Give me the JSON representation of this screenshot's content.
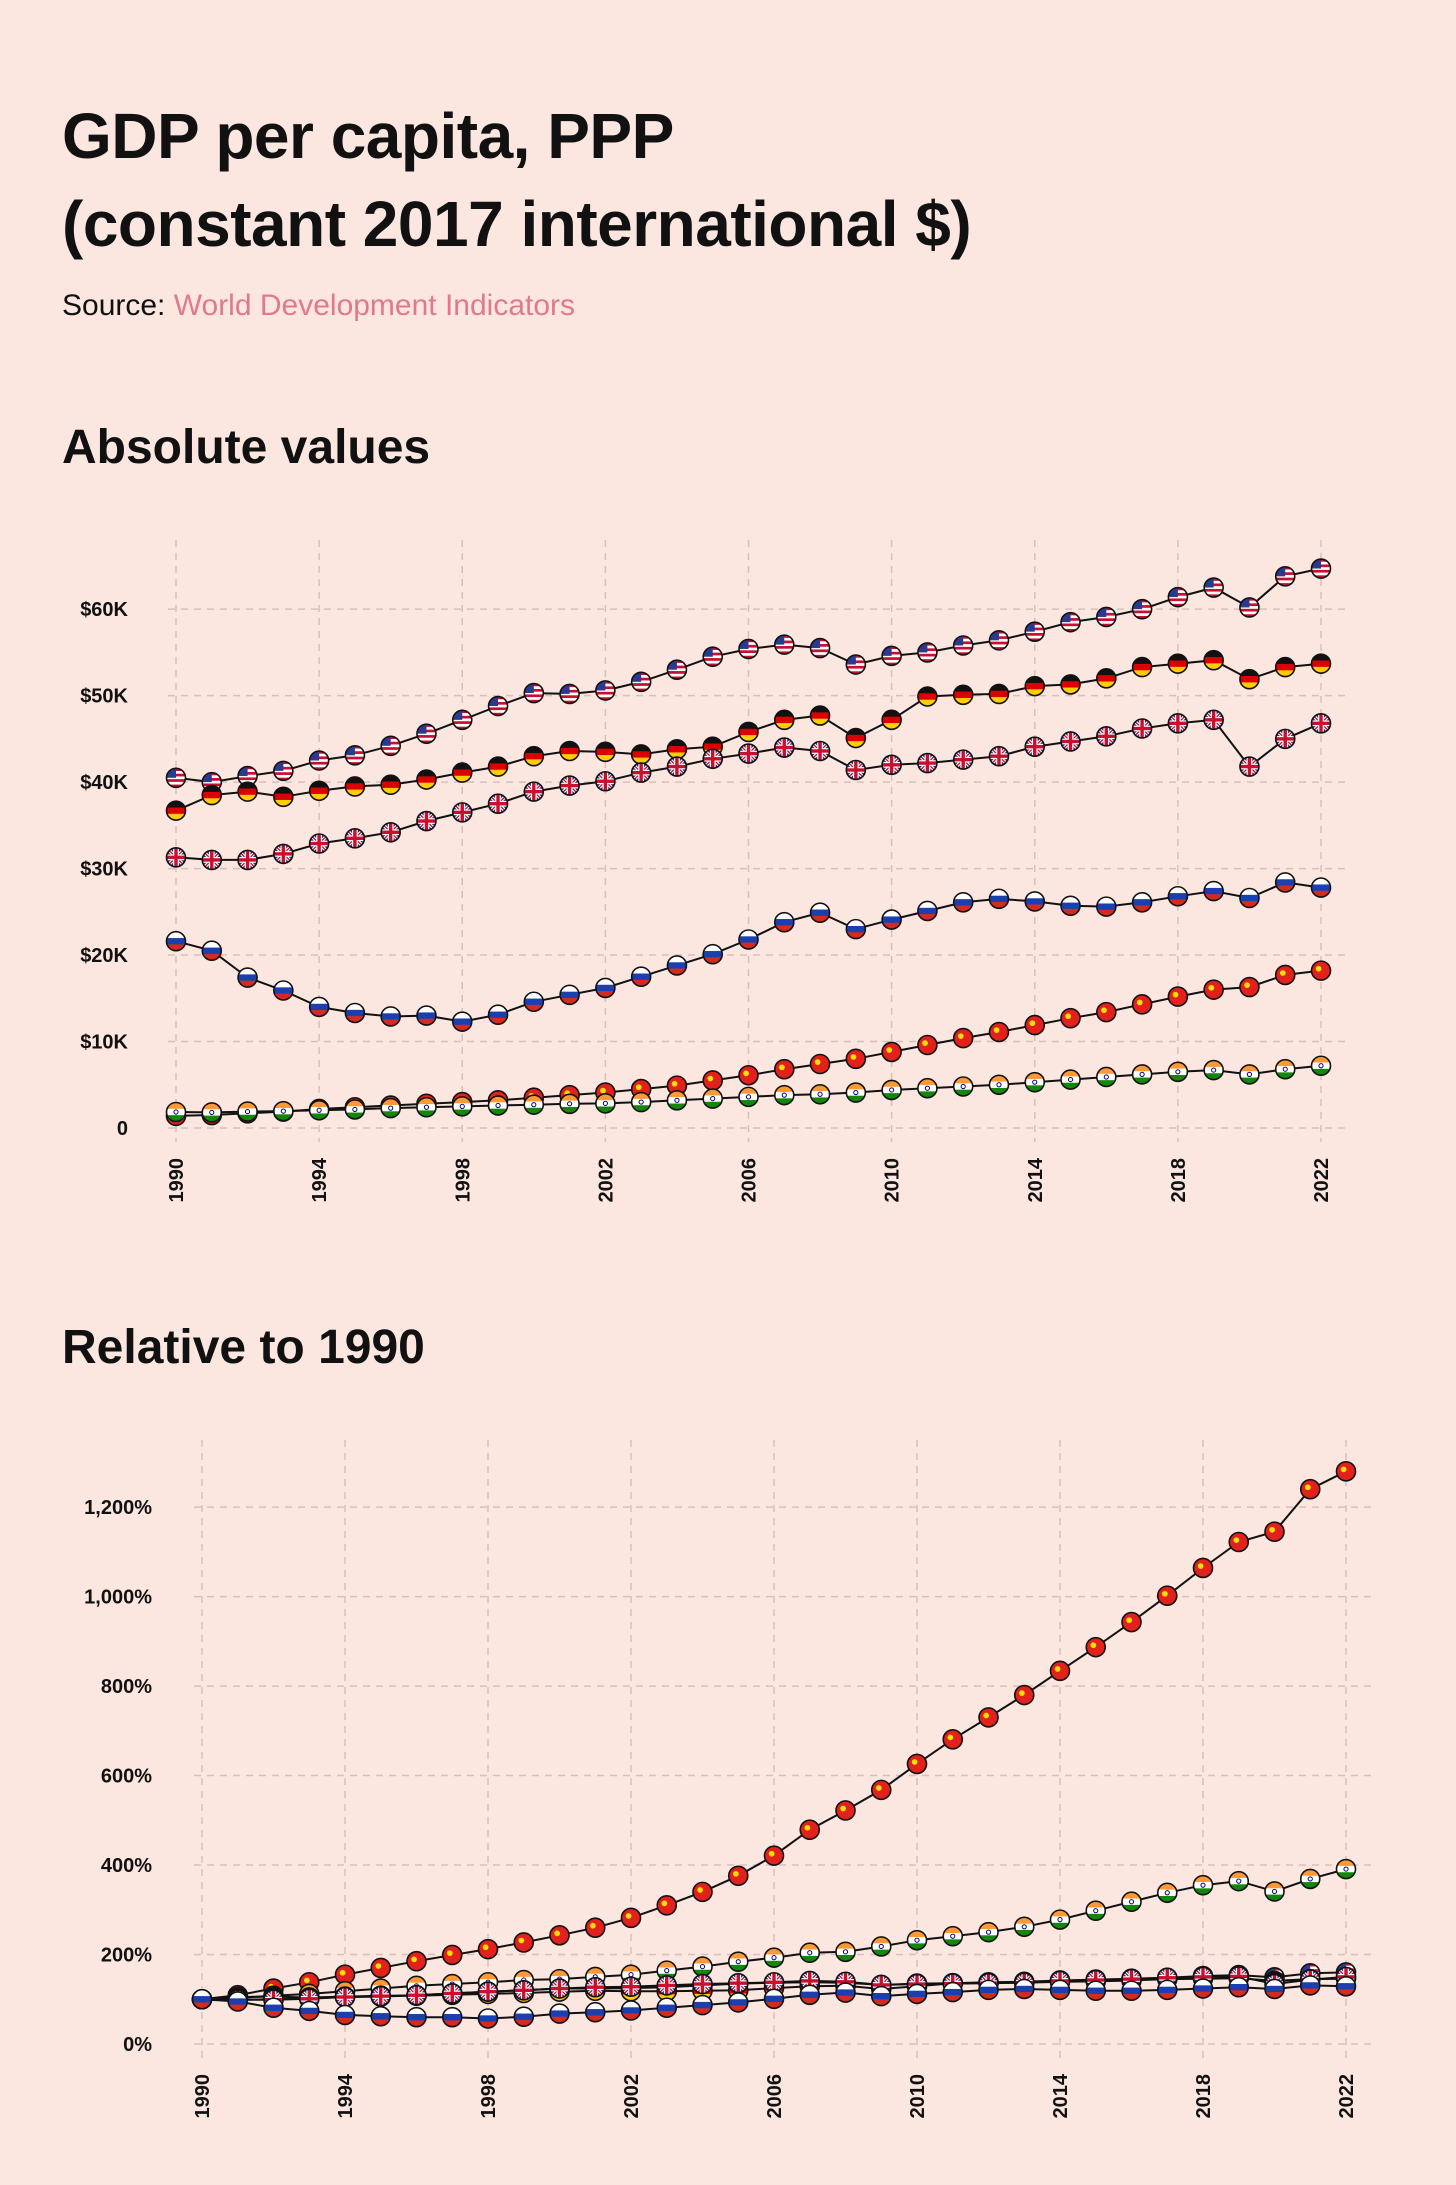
{
  "title_line1": "GDP per capita, PPP",
  "title_line2": "(constant 2017 international $)",
  "source_label": "Source:",
  "source_name": "World Development Indicators",
  "colors": {
    "background": "#fce6e0",
    "link": "#e07a8a",
    "grid": "#d9bfb9",
    "line": "#111111"
  },
  "chart_data": [
    {
      "id": "absolute",
      "type": "line",
      "title": "Absolute values",
      "x": [
        1990,
        1991,
        1992,
        1993,
        1994,
        1995,
        1996,
        1997,
        1998,
        1999,
        2000,
        2001,
        2002,
        2003,
        2004,
        2005,
        2006,
        2007,
        2008,
        2009,
        2010,
        2011,
        2012,
        2013,
        2014,
        2015,
        2016,
        2017,
        2018,
        2019,
        2020,
        2021,
        2022
      ],
      "x_ticks": [
        "1990",
        "1994",
        "1998",
        "2002",
        "2006",
        "2010",
        "2014",
        "2018",
        "2022"
      ],
      "y_ticks": [
        0,
        10000,
        20000,
        30000,
        40000,
        50000,
        60000
      ],
      "y_tick_labels": [
        "0",
        "$10K",
        "$20K",
        "$30K",
        "$40K",
        "$50K",
        "$60K"
      ],
      "ylim": [
        0,
        68000
      ],
      "xlabel": "",
      "ylabel": "",
      "series": [
        {
          "name": "United States",
          "flag": "us",
          "values": [
            40500,
            40000,
            40700,
            41300,
            42500,
            43100,
            44200,
            45600,
            47200,
            48800,
            50300,
            50200,
            50600,
            51600,
            53000,
            54500,
            55400,
            55900,
            55500,
            53600,
            54600,
            55000,
            55800,
            56400,
            57400,
            58500,
            59100,
            60000,
            61400,
            62500,
            60200,
            63800,
            64700
          ]
        },
        {
          "name": "Germany",
          "flag": "de",
          "values": [
            36700,
            38500,
            38900,
            38300,
            39000,
            39500,
            39700,
            40300,
            41100,
            41800,
            43000,
            43600,
            43500,
            43200,
            43800,
            44100,
            45800,
            47200,
            47700,
            45100,
            47200,
            49900,
            50100,
            50200,
            51100,
            51300,
            52000,
            53300,
            53700,
            54100,
            51900,
            53300,
            53700
          ]
        },
        {
          "name": "United Kingdom",
          "flag": "gb",
          "values": [
            31300,
            31000,
            31000,
            31700,
            32900,
            33500,
            34200,
            35500,
            36500,
            37500,
            38900,
            39600,
            40100,
            41100,
            41800,
            42700,
            43300,
            44000,
            43600,
            41400,
            42000,
            42200,
            42600,
            43000,
            44100,
            44700,
            45300,
            46200,
            46800,
            47200,
            41800,
            45000,
            46800
          ]
        },
        {
          "name": "Russia",
          "flag": "ru",
          "values": [
            21600,
            20500,
            17400,
            15900,
            14000,
            13300,
            12900,
            13000,
            12300,
            13100,
            14600,
            15400,
            16200,
            17500,
            18800,
            20100,
            21800,
            23800,
            24900,
            23000,
            24100,
            25100,
            26100,
            26500,
            26200,
            25700,
            25600,
            26100,
            26800,
            27400,
            26600,
            28400,
            27800
          ]
        },
        {
          "name": "China",
          "flag": "cn",
          "values": [
            1400,
            1500,
            1700,
            1900,
            2200,
            2400,
            2600,
            2800,
            3000,
            3200,
            3500,
            3800,
            4100,
            4500,
            4900,
            5500,
            6100,
            6800,
            7400,
            8000,
            8800,
            9600,
            10400,
            11100,
            11900,
            12700,
            13400,
            14300,
            15200,
            16000,
            16300,
            17700,
            18200
          ]
        },
        {
          "name": "India",
          "flag": "in",
          "values": [
            1850,
            1800,
            1900,
            1950,
            2050,
            2150,
            2300,
            2400,
            2500,
            2600,
            2700,
            2800,
            2850,
            3000,
            3200,
            3400,
            3600,
            3800,
            3900,
            4100,
            4400,
            4600,
            4800,
            5000,
            5300,
            5600,
            5900,
            6200,
            6500,
            6700,
            6200,
            6800,
            7200
          ]
        }
      ]
    },
    {
      "id": "relative",
      "type": "line",
      "title": "Relative to 1990",
      "x": [
        1990,
        1991,
        1992,
        1993,
        1994,
        1995,
        1996,
        1997,
        1998,
        1999,
        2000,
        2001,
        2002,
        2003,
        2004,
        2005,
        2006,
        2007,
        2008,
        2009,
        2010,
        2011,
        2012,
        2013,
        2014,
        2015,
        2016,
        2017,
        2018,
        2019,
        2020,
        2021,
        2022
      ],
      "x_ticks": [
        "1990",
        "1994",
        "1998",
        "2002",
        "2006",
        "2010",
        "2014",
        "2018",
        "2022"
      ],
      "y_ticks": [
        0,
        200,
        400,
        600,
        800,
        1000,
        1200
      ],
      "y_tick_labels": [
        "0%",
        "200%",
        "400%",
        "600%",
        "800%",
        "1,000%",
        "1,200%"
      ],
      "ylim": [
        0,
        1350
      ],
      "xlabel": "",
      "ylabel": "",
      "series": [
        {
          "name": "China",
          "flag": "cn",
          "values": [
            100,
            109,
            124,
            138,
            155,
            170,
            185,
            199,
            212,
            227,
            243,
            260,
            282,
            310,
            340,
            376,
            421,
            479,
            522,
            568,
            626,
            681,
            730,
            780,
            834,
            887,
            943,
            1002,
            1064,
            1122,
            1145,
            1240,
            1280
          ]
        },
        {
          "name": "India",
          "flag": "in",
          "values": [
            100,
            103,
            108,
            112,
            118,
            124,
            130,
            134,
            138,
            143,
            145,
            150,
            155,
            164,
            173,
            184,
            193,
            204,
            206,
            218,
            232,
            241,
            250,
            262,
            278,
            298,
            318,
            338,
            355,
            364,
            341,
            369,
            391
          ]
        },
        {
          "name": "United States",
          "flag": "us",
          "values": [
            100,
            99,
            100,
            102,
            105,
            106,
            109,
            113,
            117,
            120,
            124,
            124,
            125,
            127,
            131,
            135,
            137,
            138,
            137,
            132,
            135,
            136,
            138,
            139,
            142,
            144,
            146,
            148,
            152,
            154,
            149,
            158,
            160
          ]
        },
        {
          "name": "Germany",
          "flag": "de",
          "values": [
            100,
            105,
            106,
            104,
            106,
            108,
            108,
            110,
            112,
            114,
            117,
            119,
            118,
            118,
            119,
            120,
            125,
            129,
            130,
            123,
            129,
            136,
            137,
            137,
            139,
            140,
            142,
            145,
            146,
            147,
            141,
            145,
            146
          ]
        },
        {
          "name": "United Kingdom",
          "flag": "gb",
          "values": [
            100,
            99,
            99,
            101,
            105,
            107,
            109,
            113,
            117,
            120,
            124,
            127,
            128,
            131,
            134,
            136,
            138,
            141,
            139,
            132,
            134,
            135,
            136,
            137,
            141,
            143,
            145,
            148,
            150,
            151,
            134,
            144,
            150
          ]
        },
        {
          "name": "Russia",
          "flag": "ru",
          "values": [
            100,
            95,
            81,
            74,
            65,
            62,
            60,
            60,
            57,
            61,
            68,
            71,
            75,
            81,
            87,
            93,
            101,
            110,
            115,
            107,
            112,
            116,
            121,
            123,
            121,
            119,
            119,
            121,
            124,
            127,
            123,
            131,
            129
          ]
        }
      ]
    }
  ]
}
